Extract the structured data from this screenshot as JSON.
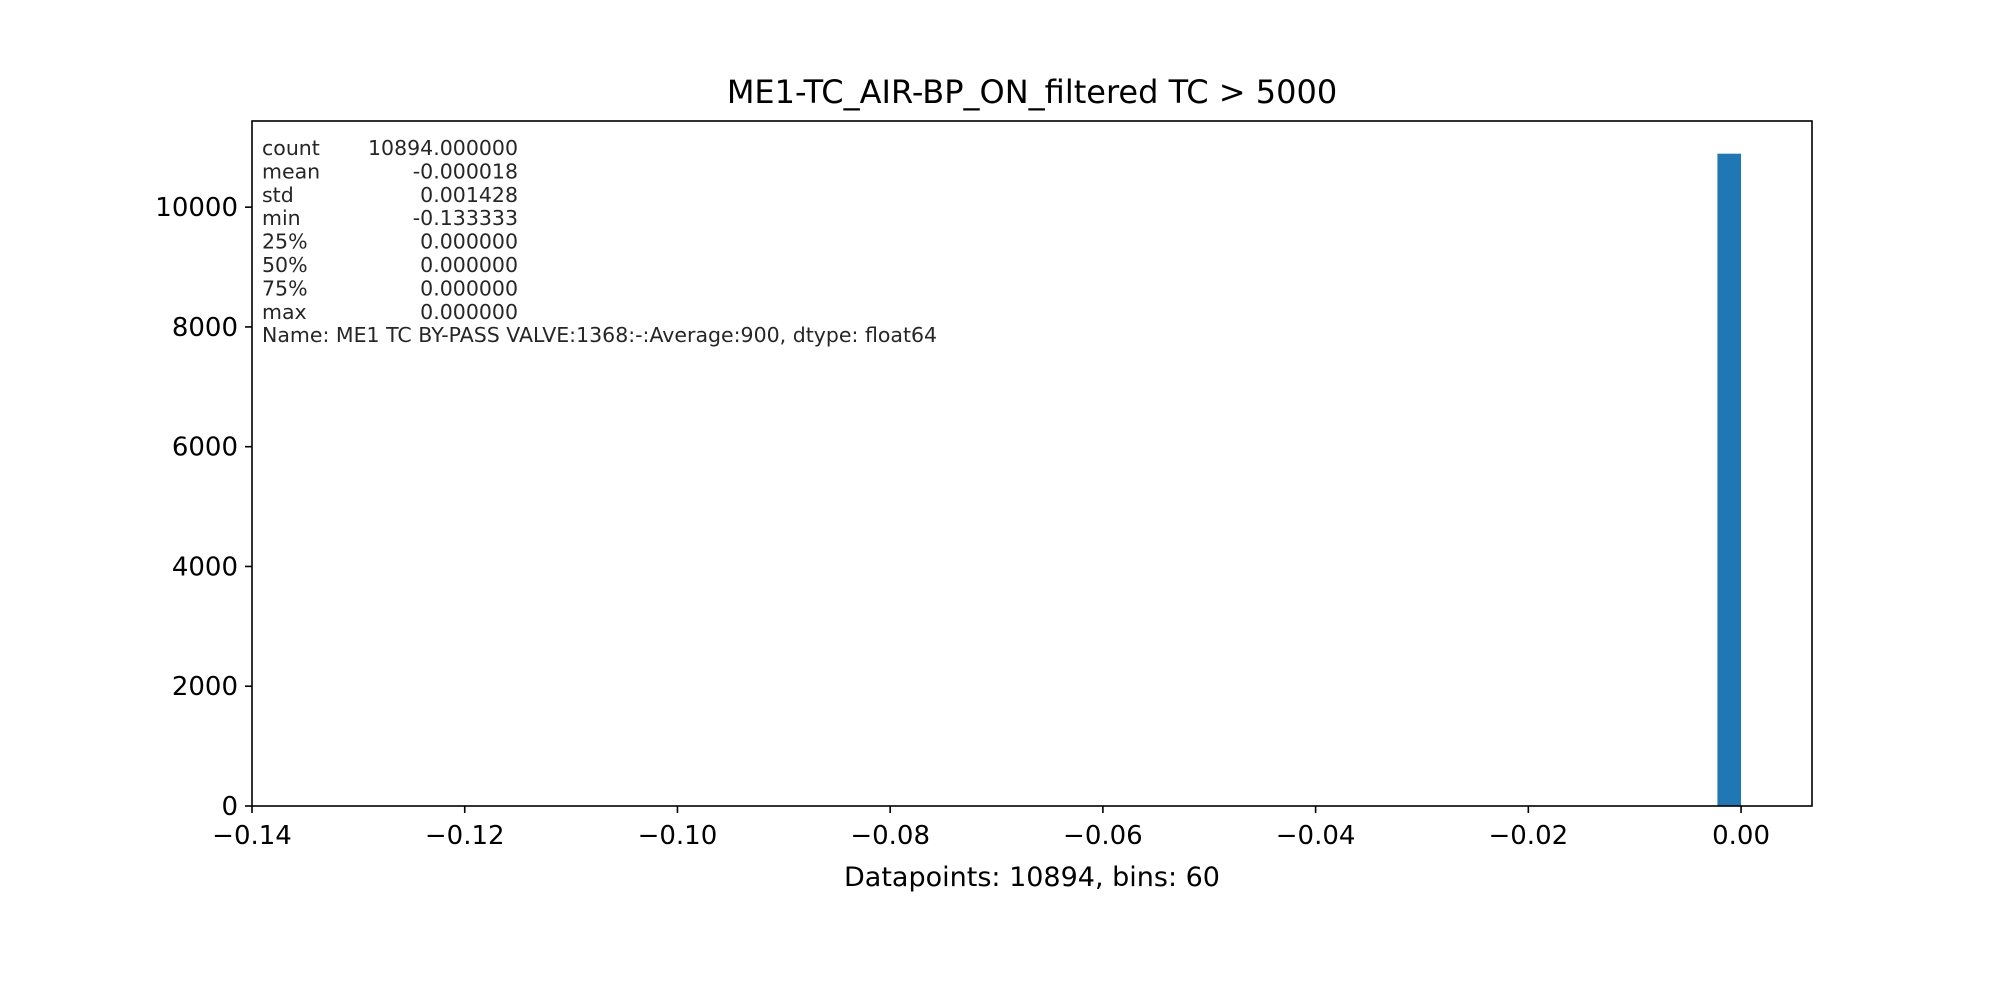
{
  "chart_data": {
    "type": "bar",
    "title": "ME1-TC_AIR-BP_ON_filtered TC > 5000",
    "xlabel": "Datapoints: 10894, bins: 60",
    "ylabel": "",
    "xlim": [
      -0.14,
      0.00667
    ],
    "ylim": [
      0,
      11438.7
    ],
    "xticks": [
      -0.14,
      -0.12,
      -0.1,
      -0.08,
      -0.06,
      -0.04,
      -0.02,
      0.0
    ],
    "xtick_labels": [
      "−0.14",
      "−0.12",
      "−0.10",
      "−0.08",
      "−0.06",
      "−0.04",
      "−0.02",
      "0.00"
    ],
    "yticks": [
      0,
      2000,
      4000,
      6000,
      8000,
      10000
    ],
    "ytick_labels": [
      "0",
      "2000",
      "4000",
      "6000",
      "8000",
      "10000"
    ],
    "bins": 60,
    "bars": [
      {
        "x0": -0.0022222,
        "x1": 0.0,
        "count": 10893
      }
    ],
    "bar_color": "#1f77b4",
    "grid": false,
    "legend": "none",
    "annotation": {
      "stats": [
        [
          "count",
          "10894.000000"
        ],
        [
          "mean",
          "-0.000018"
        ],
        [
          "std",
          "0.001428"
        ],
        [
          "min",
          "-0.133333"
        ],
        [
          "25%",
          "0.000000"
        ],
        [
          "50%",
          "0.000000"
        ],
        [
          "75%",
          "0.000000"
        ],
        [
          "max",
          "0.000000"
        ]
      ],
      "name_line": "Name: ME1 TC BY-PASS VALVE:1368:-:Average:900, dtype: float64"
    }
  }
}
